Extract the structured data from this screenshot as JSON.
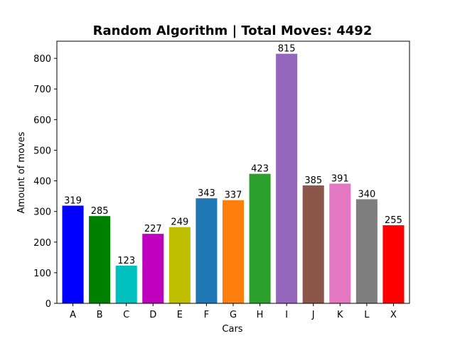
{
  "chart_data": {
    "type": "bar",
    "title": "Random Algorithm | Total Moves: 4492",
    "xlabel": "Cars",
    "ylabel": "Amount of moves",
    "categories": [
      "A",
      "B",
      "C",
      "D",
      "E",
      "F",
      "G",
      "H",
      "I",
      "J",
      "K",
      "L",
      "X"
    ],
    "values": [
      319,
      285,
      123,
      227,
      249,
      343,
      337,
      423,
      815,
      385,
      391,
      340,
      255
    ],
    "colors": [
      "#0000ff",
      "#008000",
      "#00bfbf",
      "#bf00bf",
      "#bfbf00",
      "#1f77b4",
      "#ff7f0e",
      "#2ca02c",
      "#9467bd",
      "#8c564b",
      "#e377c2",
      "#7f7f7f",
      "#ff0000"
    ],
    "ylim": [
      0,
      856
    ],
    "yticks": [
      0,
      100,
      200,
      300,
      400,
      500,
      600,
      700,
      800
    ],
    "grid": false,
    "legend": "none"
  }
}
